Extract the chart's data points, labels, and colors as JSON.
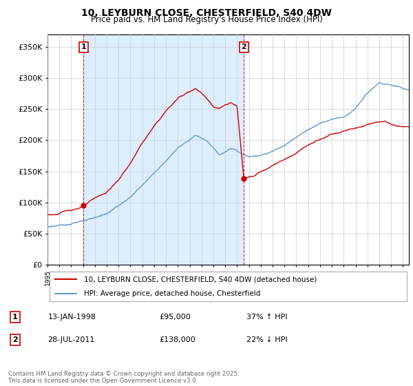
{
  "title_line1": "10, LEYBURN CLOSE, CHESTERFIELD, S40 4DW",
  "title_line2": "Price paid vs. HM Land Registry's House Price Index (HPI)",
  "legend_entry1": "10, LEYBURN CLOSE, CHESTERFIELD, S40 4DW (detached house)",
  "legend_entry2": "HPI: Average price, detached house, Chesterfield",
  "annotation1_date": "13-JAN-1998",
  "annotation1_price": "£95,000",
  "annotation1_hpi": "37% ↑ HPI",
  "annotation2_date": "28-JUL-2011",
  "annotation2_price": "£138,000",
  "annotation2_hpi": "22% ↓ HPI",
  "footer": "Contains HM Land Registry data © Crown copyright and database right 2025.\nThis data is licensed under the Open Government Licence v3.0.",
  "property_color": "#cc0000",
  "hpi_color": "#6699cc",
  "shade_color": "#ddeeff",
  "vline_color": "#cc0000",
  "ylim_min": 0,
  "ylim_max": 370000,
  "yticks": [
    0,
    50000,
    100000,
    150000,
    200000,
    250000,
    300000,
    350000
  ],
  "ytick_labels": [
    "£0",
    "£50K",
    "£100K",
    "£150K",
    "£200K",
    "£250K",
    "£300K",
    "£350K"
  ],
  "sale1_year": 1998.04,
  "sale1_price": 95000,
  "sale2_year": 2011.57,
  "sale2_price": 138000,
  "xmin": 1995,
  "xmax": 2025.5
}
